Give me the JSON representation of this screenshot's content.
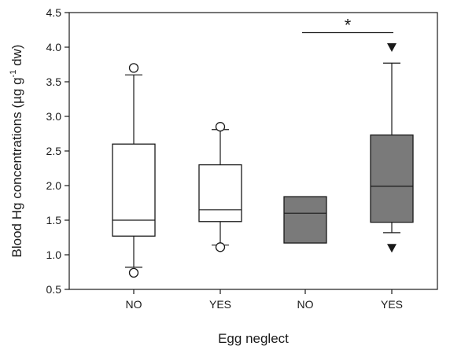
{
  "chart_data": {
    "type": "box",
    "xlabel": "Egg neglect",
    "ylabel_main": "Blood Hg concentrations (µg g",
    "ylabel_sup": "-1",
    "ylabel_tail": " dw)",
    "ylim": [
      0.5,
      4.5
    ],
    "yticks": [
      "0.5",
      "1.0",
      "1.5",
      "2.0",
      "2.5",
      "3.0",
      "3.5",
      "4.0",
      "4.5"
    ],
    "grid": false,
    "categories": [
      "NO",
      "YES",
      "NO",
      "YES"
    ],
    "boxes": [
      {
        "category": "NO",
        "fill": "#ffffff",
        "whisker_low": 0.82,
        "q1": 1.27,
        "median": 1.5,
        "q3": 2.6,
        "whisker_high": 3.6,
        "outliers": [
          {
            "value": 3.7,
            "marker": "circle"
          },
          {
            "value": 0.74,
            "marker": "circle"
          }
        ]
      },
      {
        "category": "YES",
        "fill": "#ffffff",
        "whisker_low": 1.14,
        "q1": 1.48,
        "median": 1.65,
        "q3": 2.3,
        "whisker_high": 2.81,
        "outliers": [
          {
            "value": 2.85,
            "marker": "circle"
          },
          {
            "value": 1.11,
            "marker": "circle"
          }
        ]
      },
      {
        "category": "NO",
        "fill": "#7a7a7a",
        "whisker_low": null,
        "q1": 1.17,
        "median": 1.6,
        "q3": 1.84,
        "whisker_high": null,
        "outliers": []
      },
      {
        "category": "YES",
        "fill": "#7a7a7a",
        "whisker_low": 1.32,
        "q1": 1.47,
        "median": 1.99,
        "q3": 2.73,
        "whisker_high": 3.77,
        "outliers": [
          {
            "value": 4.0,
            "marker": "triangle-down"
          },
          {
            "value": 1.1,
            "marker": "triangle-down"
          }
        ]
      }
    ],
    "significance": {
      "from_box": 2,
      "to_box": 3,
      "y": 4.21,
      "label": "*"
    }
  }
}
